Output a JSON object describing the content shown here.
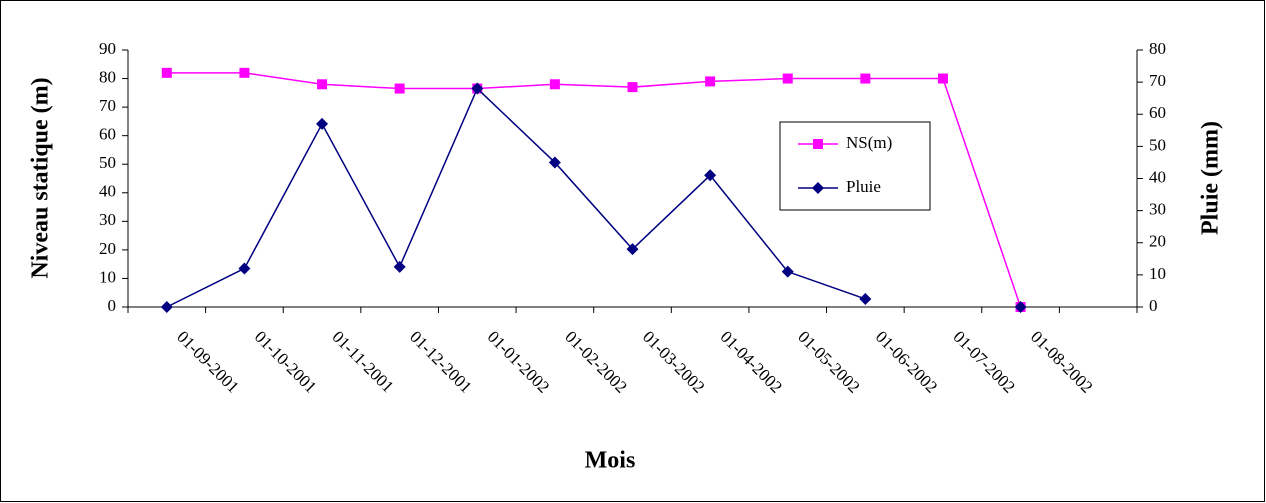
{
  "chart_data": {
    "type": "line",
    "x_label": "Mois",
    "y_label": "Niveau statique (m)",
    "y2_label": "Pluie (mm)",
    "categories": [
      "01-09-2001",
      "01-10-2001",
      "01-11-2001",
      "01-12-2001",
      "01-01-2002",
      "01-02-2002",
      "01-03-2002",
      "01-04-2002",
      "01-05-2002",
      "01-06-2002",
      "01-07-2002",
      "01-08-2002",
      null
    ],
    "series": [
      {
        "name": "NS(m)",
        "color": "#ff00ff",
        "marker": "square",
        "values": [
          82,
          82,
          78,
          76.5,
          76.5,
          78,
          77,
          79,
          80,
          80,
          80,
          0,
          null
        ]
      },
      {
        "name": "Pluie",
        "color": "#000080",
        "marker": "diamond",
        "axis": "y2",
        "values": [
          0,
          12,
          57,
          12.5,
          68,
          45,
          18,
          41,
          11,
          2.5,
          null,
          0,
          null
        ]
      }
    ],
    "ylim": [
      0,
      90
    ],
    "yticks": [
      0,
      10,
      20,
      30,
      40,
      50,
      60,
      70,
      80,
      90
    ],
    "y2lim": [
      0,
      80
    ],
    "y2ticks": [
      0,
      10,
      20,
      30,
      40,
      50,
      60,
      70,
      80
    ],
    "grid": false,
    "legend": "right"
  }
}
